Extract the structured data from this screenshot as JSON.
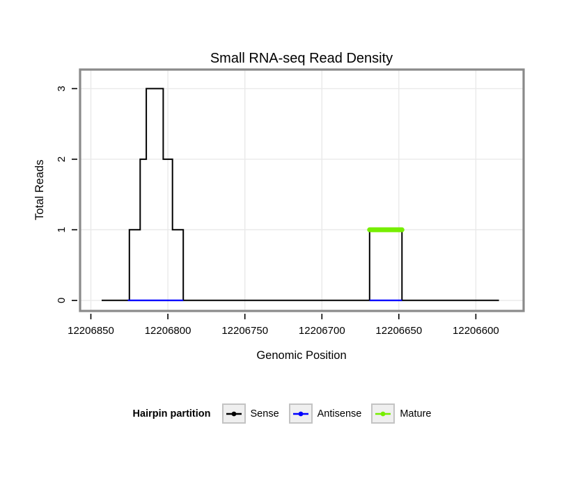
{
  "chart_data": {
    "type": "line",
    "title": "Small RNA-seq Read Density",
    "xlabel": "Genomic Position",
    "ylabel": "Total Reads",
    "x_axis_reversed": true,
    "xlim": [
      12206857,
      12206569
    ],
    "ylim": [
      -0.15,
      3.27
    ],
    "x_ticks": [
      12206850,
      12206800,
      12206750,
      12206700,
      12206650,
      12206600
    ],
    "y_ticks": [
      0,
      1,
      2,
      3
    ],
    "grid": true,
    "colors": {
      "grid": "#E9E9E9",
      "frame": "#8A8A8A",
      "background": "#FFFFFF",
      "sense": "#000000",
      "antisense": "#0000FF",
      "mature": "#76EE00"
    },
    "series": [
      {
        "name": "Sense",
        "type": "step",
        "color": "#000000",
        "width": 2,
        "points": [
          [
            12206843,
            0
          ],
          [
            12206825,
            0
          ],
          [
            12206825,
            1
          ],
          [
            12206818,
            1
          ],
          [
            12206818,
            2
          ],
          [
            12206814,
            2
          ],
          [
            12206814,
            3
          ],
          [
            12206803,
            3
          ],
          [
            12206803,
            2
          ],
          [
            12206797,
            2
          ],
          [
            12206797,
            1
          ],
          [
            12206790,
            1
          ],
          [
            12206790,
            0
          ],
          [
            12206669,
            0
          ],
          [
            12206669,
            1
          ],
          [
            12206648,
            1
          ],
          [
            12206648,
            0
          ],
          [
            12206585,
            0
          ]
        ]
      },
      {
        "name": "Antisense",
        "type": "segments",
        "color": "#0000FF",
        "width": 2.4,
        "segments": [
          {
            "y": 0,
            "from": 12206826,
            "to": 12206790
          },
          {
            "y": 0,
            "from": 12206669,
            "to": 12206648
          }
        ]
      },
      {
        "name": "Mature",
        "type": "segments",
        "color": "#76EE00",
        "width": 7,
        "cap": "round",
        "segments": [
          {
            "y": 1,
            "from": 12206669,
            "to": 12206648
          }
        ]
      }
    ],
    "legend": {
      "title": "Hairpin partition",
      "position": "bottom",
      "items": [
        {
          "label": "Sense",
          "color": "#000000"
        },
        {
          "label": "Antisense",
          "color": "#0000FF"
        },
        {
          "label": "Mature",
          "color": "#76EE00"
        }
      ]
    }
  }
}
